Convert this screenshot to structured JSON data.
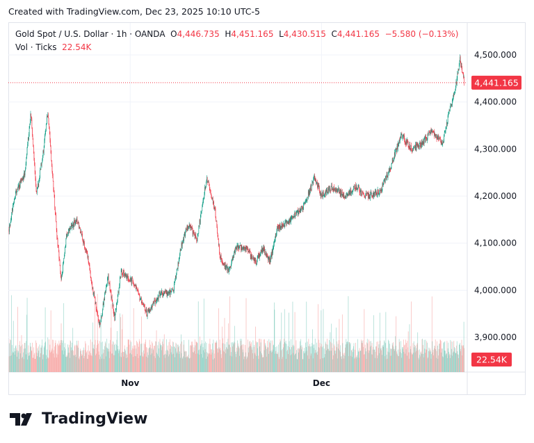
{
  "caption": "Created with TradingView.com, Dec 23, 2025 10:10 UTC-5",
  "legend": {
    "symbol": "Gold Spot / U.S. Dollar · 1h · OANDA",
    "open_label": "O",
    "open": "4,446.735",
    "high_label": "H",
    "high": "4,451.165",
    "low_label": "L",
    "low": "4,430.515",
    "close_label": "C",
    "close": "4,441.165",
    "change": "−5.580 (−0.13%)",
    "vol_label": "Vol · Ticks",
    "vol": "22.54K"
  },
  "logo_text": "TradingView",
  "colors": {
    "up": "#089981",
    "down": "#f23645",
    "vol_up": "#8fd1c5",
    "vol_down": "#f7a9a7",
    "grid": "#f0f3fa"
  },
  "chart_data": {
    "type": "candlestick",
    "interval": "1h",
    "ylim": [
      3860,
      4530
    ],
    "y_ticks": [
      "4,500.000",
      "4,400.000",
      "4,300.000",
      "4,200.000",
      "4,100.000",
      "4,000.000",
      "3,900.000"
    ],
    "y_tick_values": [
      4500,
      4400,
      4300,
      4200,
      4100,
      4000,
      3900
    ],
    "x_ticks": [
      {
        "label": "Nov",
        "date": "2025-11-01T00:00"
      },
      {
        "label": "Dec",
        "date": "2025-12-01T00:00"
      }
    ],
    "last_price_label": "4,441.165",
    "last_price": 4441.165,
    "last_volume_label": "22.54K",
    "grid": true,
    "approx_close_path": [
      [
        "2025-10-13T00:00",
        4130
      ],
      [
        "2025-10-13T21:00",
        4200
      ],
      [
        "2025-10-15T12:00",
        4250
      ],
      [
        "2025-10-16T10:00",
        4380
      ],
      [
        "2025-10-17T07:00",
        4200
      ],
      [
        "2025-10-18T10:00",
        4300
      ],
      [
        "2025-10-19T02:00",
        4380
      ],
      [
        "2025-10-19T19:00",
        4250
      ],
      [
        "2025-10-20T14:00",
        4100
      ],
      [
        "2025-10-21T05:00",
        4020
      ],
      [
        "2025-10-22T00:00",
        4120
      ],
      [
        "2025-10-23T14:00",
        4150
      ],
      [
        "2025-10-25T05:00",
        4080
      ],
      [
        "2025-10-26T07:00",
        3990
      ],
      [
        "2025-10-27T05:00",
        3920
      ],
      [
        "2025-10-28T12:00",
        4030
      ],
      [
        "2025-10-29T14:00",
        3940
      ],
      [
        "2025-10-30T14:00",
        4040
      ],
      [
        "2025-11-01T07:00",
        4020
      ],
      [
        "2025-11-02T07:00",
        3990
      ],
      [
        "2025-11-03T14:00",
        3950
      ],
      [
        "2025-11-05T14:00",
        3990
      ],
      [
        "2025-11-07T19:00",
        4000
      ],
      [
        "2025-11-09T02:00",
        4100
      ],
      [
        "2025-11-10T02:00",
        4140
      ],
      [
        "2025-11-11T12:00",
        4110
      ],
      [
        "2025-11-13T00:00",
        4240
      ],
      [
        "2025-11-14T07:00",
        4170
      ],
      [
        "2025-11-15T02:00",
        4070
      ],
      [
        "2025-11-16T10:00",
        4040
      ],
      [
        "2025-11-17T12:00",
        4090
      ],
      [
        "2025-11-19T02:00",
        4090
      ],
      [
        "2025-11-20T17:00",
        4060
      ],
      [
        "2025-11-21T19:00",
        4090
      ],
      [
        "2025-11-22T22:00",
        4060
      ],
      [
        "2025-11-24T00:00",
        4130
      ],
      [
        "2025-11-26T05:00",
        4150
      ],
      [
        "2025-11-28T07:00",
        4180
      ],
      [
        "2025-11-29T22:00",
        4240
      ],
      [
        "2025-12-01T00:00",
        4200
      ],
      [
        "2025-12-02T14:00",
        4220
      ],
      [
        "2025-12-04T19:00",
        4200
      ],
      [
        "2025-12-06T10:00",
        4220
      ],
      [
        "2025-12-08T02:00",
        4200
      ],
      [
        "2025-12-10T05:00",
        4210
      ],
      [
        "2025-12-11T19:00",
        4260
      ],
      [
        "2025-12-13T12:00",
        4330
      ],
      [
        "2025-12-15T02:00",
        4300
      ],
      [
        "2025-12-16T17:00",
        4310
      ],
      [
        "2025-12-18T07:00",
        4340
      ],
      [
        "2025-12-20T00:00",
        4310
      ],
      [
        "2025-12-21T00:00",
        4380
      ],
      [
        "2025-12-21T22:00",
        4420
      ],
      [
        "2025-12-22T17:00",
        4490
      ],
      [
        "2025-12-23T10:00",
        4441.165
      ]
    ]
  }
}
